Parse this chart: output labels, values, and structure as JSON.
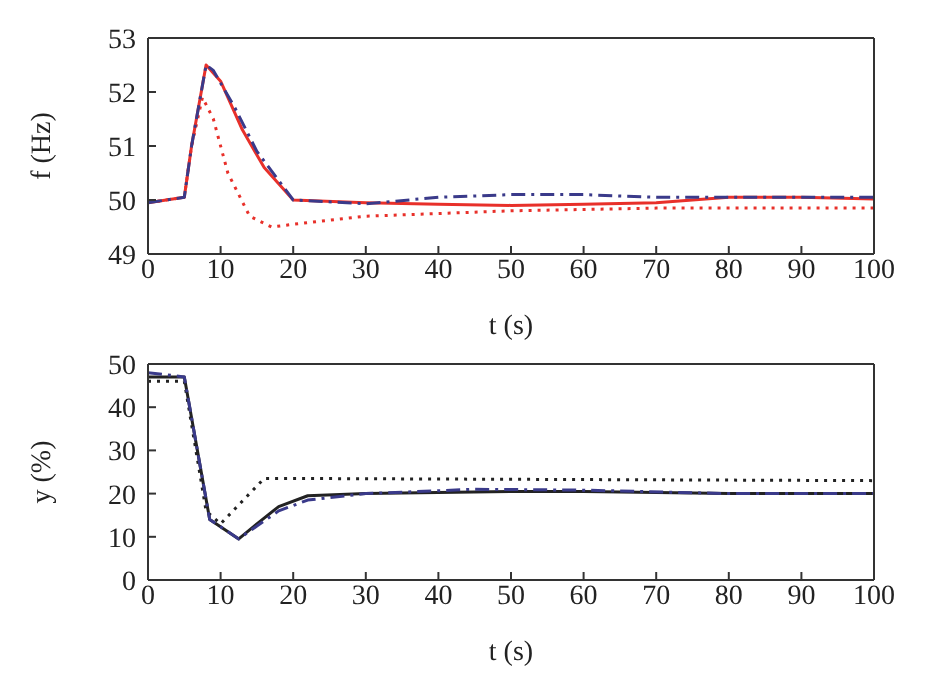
{
  "chart_data": [
    {
      "type": "line",
      "xlabel": "t (s)",
      "ylabel": "f (Hz)",
      "xlim": [
        0,
        100
      ],
      "xticks": [
        0,
        10,
        20,
        30,
        40,
        50,
        60,
        70,
        80,
        90,
        100
      ],
      "ylim": [
        49,
        53
      ],
      "yticks": [
        49,
        50,
        51,
        52,
        53
      ],
      "grid": false,
      "legend": false,
      "marker": "none",
      "series": [
        {
          "color": "#3a3a8a",
          "line_style": "dashed",
          "x": [
            0,
            5,
            6,
            8,
            9,
            12,
            15,
            20,
            30,
            40,
            50,
            60,
            70,
            80,
            90,
            100
          ],
          "values": [
            49.95,
            50.05,
            51,
            52.5,
            52.4,
            51.7,
            50.9,
            50.0,
            49.93,
            50.05,
            50.1,
            50.1,
            50.05,
            50.05,
            50.05,
            50.05
          ]
        },
        {
          "color": "#e8302a",
          "line_style": "solid",
          "x": [
            0,
            5,
            6,
            8,
            10,
            13,
            16,
            20,
            30,
            40,
            50,
            60,
            70,
            80,
            90,
            100
          ],
          "values": [
            49.95,
            50.05,
            51,
            52.5,
            52.2,
            51.3,
            50.6,
            50.0,
            49.95,
            49.92,
            49.9,
            49.92,
            49.95,
            50.05,
            50.05,
            50.02
          ]
        },
        {
          "color": "#e8302a",
          "line_style": "dotted",
          "x": [
            0,
            5,
            6,
            7.5,
            9,
            11,
            14,
            17,
            20,
            30,
            50,
            70,
            90,
            100
          ],
          "values": [
            49.95,
            50.05,
            51,
            51.9,
            51.5,
            50.5,
            49.7,
            49.5,
            49.55,
            49.7,
            49.8,
            49.85,
            49.85,
            49.85
          ]
        }
      ]
    },
    {
      "type": "line",
      "xlabel": "t (s)",
      "ylabel": "y (%)",
      "xlim": [
        0,
        100
      ],
      "xticks": [
        0,
        10,
        20,
        30,
        40,
        50,
        60,
        70,
        80,
        90,
        100
      ],
      "ylim": [
        0,
        50
      ],
      "yticks": [
        0,
        10,
        20,
        30,
        40,
        50
      ],
      "grid": false,
      "legend": false,
      "marker": "none",
      "series": [
        {
          "color": "#3a3a8a",
          "line_style": "dashed",
          "x": [
            0,
            5,
            8.5,
            12.5,
            15,
            18,
            22,
            30,
            45,
            60,
            80,
            100
          ],
          "values": [
            48,
            47,
            14,
            9.5,
            12.5,
            16,
            18.5,
            20,
            21,
            20.8,
            20,
            20
          ]
        },
        {
          "color": "#222222",
          "line_style": "solid",
          "x": [
            0,
            5,
            8.5,
            12.5,
            15,
            18,
            22,
            30,
            50,
            60,
            80,
            100
          ],
          "values": [
            47,
            47,
            14,
            9.5,
            13,
            17,
            19.5,
            20,
            20.5,
            20.5,
            20,
            20
          ]
        },
        {
          "color": "#222222",
          "line_style": "dotted",
          "x": [
            0,
            5,
            8,
            10,
            16,
            20,
            100
          ],
          "values": [
            46,
            46,
            16,
            13,
            23.5,
            23.5,
            23
          ]
        }
      ]
    }
  ]
}
